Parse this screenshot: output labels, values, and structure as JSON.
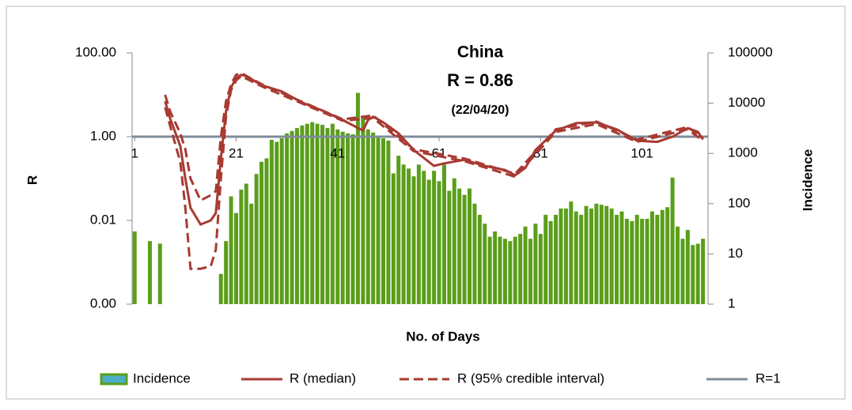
{
  "chart_data": {
    "type": "bar-line-log",
    "title": "China",
    "subtitle": "R = 0.86",
    "date": "(22/04/20)",
    "x_label": "No. of Days",
    "y_label": "R",
    "y2_label": "Incidence",
    "log_y": true,
    "log_y2": true,
    "xlim": [
      0.5,
      114
    ],
    "xticks": [
      1,
      21,
      41,
      61,
      81,
      101
    ],
    "ylim": [
      0.0001,
      100
    ],
    "yticks": [
      {
        "value": 0.0001,
        "label": "0.00"
      },
      {
        "value": 0.01,
        "label": "0.01"
      },
      {
        "value": 1,
        "label": "1.00"
      },
      {
        "value": 100,
        "label": "100.00"
      }
    ],
    "y2lim": [
      1,
      100000
    ],
    "y2ticks": [
      1,
      10,
      100,
      1000,
      10000,
      100000
    ],
    "incidence": {
      "name": "Incidence",
      "color": "#5a9e1a",
      "axis": "y2",
      "x": [
        1,
        2,
        3,
        4,
        5,
        6,
        7,
        8,
        9,
        10,
        11,
        12,
        13,
        14,
        15,
        16,
        17,
        18,
        19,
        20,
        21,
        22,
        23,
        24,
        25,
        26,
        27,
        28,
        29,
        30,
        31,
        32,
        33,
        34,
        35,
        36,
        37,
        38,
        39,
        40,
        41,
        42,
        43,
        44,
        45,
        46,
        47,
        48,
        49,
        50,
        51,
        52,
        53,
        54,
        55,
        56,
        57,
        58,
        59,
        60,
        61,
        62,
        63,
        64,
        65,
        66,
        67,
        68,
        69,
        70,
        71,
        72,
        73,
        74,
        75,
        76,
        77,
        78,
        79,
        80,
        81,
        82,
        83,
        84,
        85,
        86,
        87,
        88,
        89,
        90,
        91,
        92,
        93,
        94,
        95,
        96,
        97,
        98,
        99,
        100,
        101,
        102,
        103,
        104,
        105,
        106,
        107,
        108,
        109,
        110,
        111,
        112,
        113
      ],
      "values": [
        28,
        null,
        null,
        18,
        null,
        16,
        null,
        null,
        null,
        null,
        null,
        null,
        null,
        null,
        null,
        null,
        null,
        4,
        18,
        140,
        65,
        190,
        250,
        100,
        390,
        680,
        800,
        1870,
        1700,
        2000,
        2500,
        2800,
        3200,
        3600,
        3900,
        4200,
        3900,
        3700,
        3200,
        3900,
        3000,
        2700,
        2500,
        2400,
        16000,
        5100,
        3000,
        2600,
        2100,
        2000,
        1800,
        400,
        900,
        600,
        500,
        350,
        600,
        450,
        300,
        450,
        280,
        600,
        180,
        320,
        200,
        150,
        200,
        100,
        60,
        40,
        22,
        28,
        22,
        20,
        18,
        22,
        25,
        35,
        20,
        40,
        25,
        60,
        45,
        60,
        80,
        80,
        110,
        70,
        60,
        90,
        80,
        100,
        95,
        90,
        80,
        60,
        70,
        50,
        45,
        60,
        50,
        50,
        70,
        60,
        75,
        85,
        330,
        35,
        20,
        30,
        15,
        16,
        20
      ]
    },
    "median": {
      "name": "R (median)",
      "color": "#a83a32",
      "x": [
        7,
        8,
        10,
        11,
        12,
        14,
        16,
        17,
        18,
        19,
        20,
        21,
        22,
        23,
        26,
        30,
        34,
        38,
        42,
        46,
        47,
        48,
        50,
        53,
        56,
        60,
        62,
        66,
        70,
        74,
        76,
        78,
        80,
        84,
        88,
        92,
        96,
        100,
        104,
        107,
        110,
        112,
        113
      ],
      "values": [
        7,
        2.7,
        0.6,
        0.1,
        0.02,
        0.008,
        0.01,
        0.015,
        0.3,
        4,
        15,
        25,
        30,
        28,
        17,
        12,
        6.5,
        4.2,
        2.5,
        1.4,
        2.5,
        3,
        2.2,
        1.2,
        0.48,
        0.2,
        0.23,
        0.28,
        0.2,
        0.16,
        0.12,
        0.18,
        0.48,
        1.4,
        2.1,
        2.2,
        1.5,
        0.8,
        0.75,
        1.0,
        1.6,
        1.3,
        0.86
      ]
    },
    "interval": {
      "name": "R (95% credible interval)",
      "color": "#a83a32",
      "x": [
        7,
        8,
        10,
        11,
        12,
        14,
        16,
        17,
        18,
        19,
        20,
        21,
        22,
        26,
        34,
        42,
        48,
        56,
        66,
        76,
        84,
        92,
        100,
        110,
        113
      ],
      "lower": [
        5,
        1.8,
        0.25,
        0.02,
        0.0007,
        0.0007,
        0.0008,
        0.002,
        0.1,
        3,
        13,
        22,
        28,
        16,
        6.2,
        2.4,
        2.8,
        0.45,
        0.26,
        0.11,
        1.3,
        2.0,
        0.75,
        1.5,
        0.8
      ],
      "upper": [
        10,
        4,
        1.2,
        0.5,
        0.1,
        0.03,
        0.04,
        0.05,
        1,
        7,
        18,
        30,
        33,
        18,
        6.8,
        2.6,
        3.2,
        0.5,
        0.3,
        0.13,
        1.5,
        2.3,
        0.85,
        1.7,
        0.92
      ]
    },
    "reference": {
      "name": "R=1",
      "color": "#7f8c99",
      "value": 1
    }
  }
}
